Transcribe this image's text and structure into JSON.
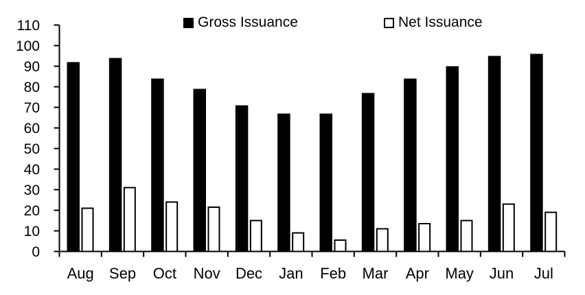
{
  "chart_data": {
    "type": "bar",
    "title": "",
    "xlabel": "",
    "ylabel": "",
    "categories": [
      "Aug",
      "Sep",
      "Oct",
      "Nov",
      "Dec",
      "Jan",
      "Feb",
      "Mar",
      "Apr",
      "May",
      "Jun",
      "Jul"
    ],
    "series": [
      {
        "name": "Gross Issuance",
        "values": [
          92,
          94,
          84,
          79,
          71,
          67,
          67,
          77,
          84,
          90,
          95,
          96
        ]
      },
      {
        "name": "Net Issuance",
        "values": [
          21,
          31,
          24,
          21.5,
          15,
          9,
          5.5,
          11,
          13.5,
          15,
          23,
          19
        ]
      }
    ],
    "ylim": [
      0,
      110
    ],
    "ytick_step": 10,
    "ytick_labels": [
      "0",
      "10",
      "20",
      "30",
      "40",
      "50",
      "60",
      "70",
      "80",
      "90",
      "100",
      "110"
    ],
    "grid": false,
    "legend_position": "top",
    "colors": {
      "gross_fill": "#000000",
      "net_fill": "#ffffff",
      "net_border": "#000000",
      "axis": "#000000",
      "text": "#000000",
      "background": "#ffffff"
    }
  },
  "legend": {
    "items": [
      {
        "label": "Gross Issuance",
        "swatch": "filled-black-square"
      },
      {
        "label": "Net Issuance",
        "swatch": "outlined-white-square"
      }
    ]
  }
}
